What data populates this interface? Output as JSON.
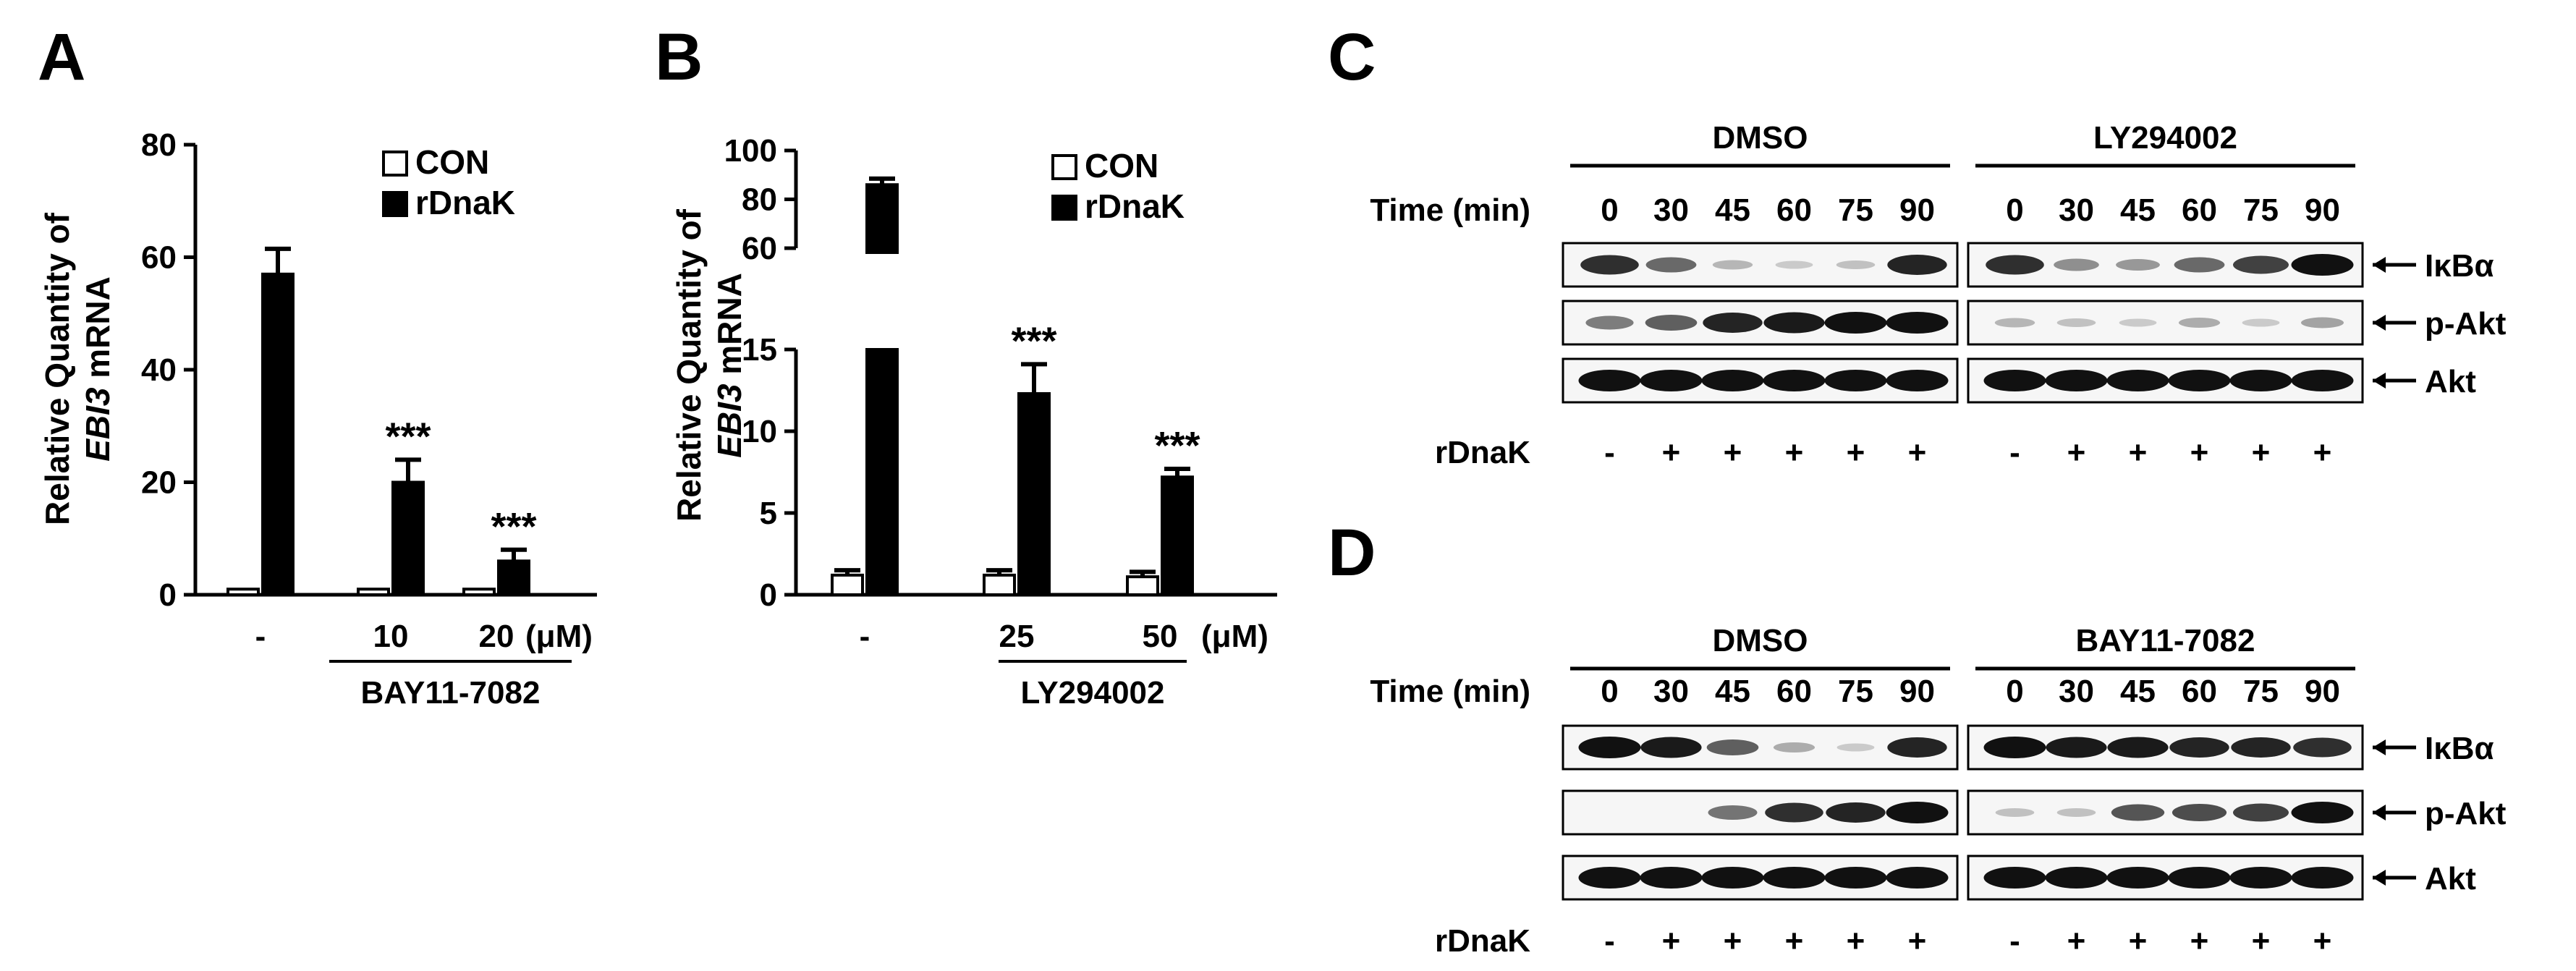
{
  "colors": {
    "ink": "#000000",
    "blot_bg": "#f6f6f6",
    "band": "#111111"
  },
  "panels": {
    "A": {
      "letter": "A"
    },
    "B": {
      "letter": "B"
    },
    "C": {
      "letter": "C"
    },
    "D": {
      "letter": "D"
    }
  },
  "chart_data": [
    {
      "panel": "A",
      "type": "bar",
      "ylabel_line1": "Relative Quantity of",
      "ylabel_gene": "EBI3",
      "ylabel_rest": " mRNA",
      "ylim": [
        0,
        80
      ],
      "yticks": [
        "0",
        "20",
        "40",
        "60",
        "80"
      ],
      "ytick_values": [
        0,
        20,
        40,
        60,
        80
      ],
      "categories": [
        "-",
        "10",
        "20"
      ],
      "unit": "(μM)",
      "group_label": "BAY11-7082",
      "series": [
        {
          "name": "CON",
          "values": [
            1,
            1,
            1
          ],
          "errors": [
            0,
            0,
            0
          ],
          "fill": "#ffffff"
        },
        {
          "name": "rDnaK",
          "values": [
            57,
            20,
            6
          ],
          "errors": [
            4.5,
            4,
            2
          ],
          "fill": "#000000"
        }
      ],
      "significance": [
        "",
        "***",
        "***"
      ],
      "legend_position": "top-right"
    },
    {
      "panel": "B",
      "type": "bar",
      "ylabel_line1": "Relative Quantity of",
      "ylabel_gene": "EBI3",
      "ylabel_rest": " mRNA",
      "axis_break": true,
      "upper_ylim": [
        60,
        100
      ],
      "lower_ylim": [
        0,
        15
      ],
      "upper_yticks": [
        "60",
        "80",
        "100"
      ],
      "upper_ytick_values": [
        60,
        80,
        100
      ],
      "lower_yticks": [
        "0",
        "5",
        "10",
        "15"
      ],
      "lower_ytick_values": [
        0,
        5,
        10,
        15
      ],
      "categories": [
        "-",
        "25",
        "50"
      ],
      "unit": "(μM)",
      "group_label": "LY294002",
      "series": [
        {
          "name": "CON",
          "values": [
            1.2,
            1.2,
            1.1
          ],
          "errors": [
            0.3,
            0.3,
            0.3
          ],
          "fill": "#ffffff"
        },
        {
          "name": "rDnaK",
          "values": [
            86,
            12.3,
            7.2
          ],
          "errors": [
            2.5,
            1.8,
            0.5
          ],
          "fill": "#000000"
        }
      ],
      "significance": [
        "",
        "***",
        "***"
      ],
      "legend_position": "top-right"
    }
  ],
  "blots": [
    {
      "panel": "C",
      "time_label": "Time (min)",
      "rdnak_label": "rDnaK",
      "groups": [
        {
          "name": "DMSO",
          "times": [
            "0",
            "30",
            "45",
            "60",
            "75",
            "90"
          ],
          "rdnak": [
            "-",
            "+",
            "+",
            "+",
            "+",
            "+"
          ]
        },
        {
          "name": "LY294002",
          "times": [
            "0",
            "30",
            "45",
            "60",
            "75",
            "90"
          ],
          "rdnak": [
            "-",
            "+",
            "+",
            "+",
            "+",
            "+"
          ]
        }
      ],
      "rows": [
        {
          "label": "IκBα",
          "intensity": [
            [
              0.85,
              0.55,
              0.15,
              0.05,
              0.1,
              0.9
            ],
            [
              0.85,
              0.35,
              0.3,
              0.55,
              0.75,
              1.0
            ]
          ]
        },
        {
          "label": "p-Akt",
          "intensity": [
            [
              0.45,
              0.6,
              0.9,
              0.95,
              1.0,
              1.0
            ],
            [
              0.15,
              0.1,
              0.05,
              0.2,
              0.05,
              0.25
            ]
          ]
        },
        {
          "label": "Akt",
          "intensity": [
            [
              1.0,
              1.0,
              1.0,
              1.0,
              1.0,
              1.0
            ],
            [
              1.0,
              1.0,
              1.0,
              1.0,
              1.0,
              1.0
            ]
          ]
        }
      ]
    },
    {
      "panel": "D",
      "time_label": "Time (min)",
      "rdnak_label": "rDnaK",
      "groups": [
        {
          "name": "DMSO",
          "times": [
            "0",
            "30",
            "45",
            "60",
            "75",
            "90"
          ],
          "rdnak": [
            "-",
            "+",
            "+",
            "+",
            "+",
            "+"
          ]
        },
        {
          "name": "BAY11-7082",
          "times": [
            "0",
            "30",
            "45",
            "60",
            "75",
            "90"
          ],
          "rdnak": [
            "-",
            "+",
            "+",
            "+",
            "+",
            "+"
          ]
        }
      ],
      "rows": [
        {
          "label": "IκBα",
          "intensity": [
            [
              1.0,
              0.95,
              0.6,
              0.2,
              0.05,
              0.9
            ],
            [
              1.0,
              0.95,
              0.95,
              0.9,
              0.9,
              0.85
            ]
          ]
        },
        {
          "label": "p-Akt",
          "intensity": [
            [
              0.0,
              0.0,
              0.5,
              0.85,
              0.9,
              1.0
            ],
            [
              0.1,
              0.1,
              0.65,
              0.7,
              0.75,
              1.0
            ]
          ]
        },
        {
          "label": "Akt",
          "intensity": [
            [
              1.0,
              1.0,
              1.0,
              1.0,
              1.0,
              1.0
            ],
            [
              1.0,
              1.0,
              1.0,
              1.0,
              1.0,
              1.0
            ]
          ]
        }
      ]
    }
  ]
}
